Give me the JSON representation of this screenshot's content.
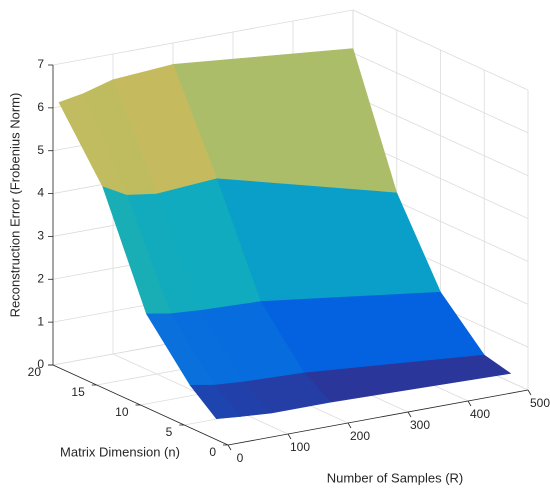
{
  "chart_data": {
    "type": "surface",
    "x_label": "Number of Samples (R)",
    "y_label": "Matrix Dimension (n)",
    "z_label": "Reconstruction Error (Frobenius Norm)",
    "x": [
      10,
      50,
      100,
      200,
      500
    ],
    "y": [
      2,
      5,
      10,
      15,
      20
    ],
    "z": [
      [
        0.4,
        0.35,
        0.3,
        0.3,
        0.2
      ],
      [
        0.9,
        0.8,
        0.75,
        0.7,
        0.35
      ],
      [
        2.1,
        2.0,
        1.95,
        1.9,
        1.35
      ],
      [
        4.6,
        4.3,
        4.2,
        4.3,
        3.2
      ],
      [
        6.1,
        6.2,
        6.4,
        6.5,
        6.1
      ]
    ],
    "colormap": "parula",
    "xlim": [
      0,
      500
    ],
    "xticks": [
      0,
      100,
      200,
      300,
      400,
      500
    ],
    "ylim": [
      0,
      20
    ],
    "yticks": [
      0,
      5,
      10,
      15,
      20
    ],
    "zlim": [
      0,
      7
    ],
    "zticks": [
      0,
      1,
      2,
      3,
      4,
      5,
      6,
      7
    ],
    "grid": true
  }
}
